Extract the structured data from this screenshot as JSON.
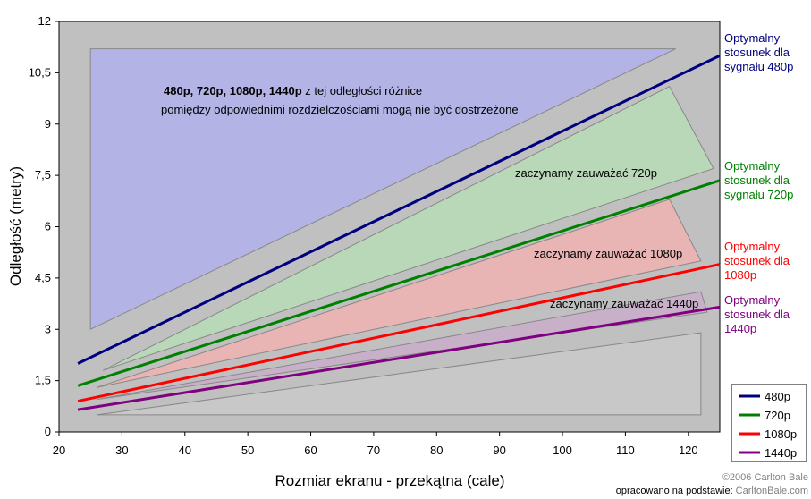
{
  "chart_data": {
    "type": "line",
    "title": "",
    "xlabel": "Rozmiar ekranu - przekątna (cale)",
    "ylabel": "Odległość (metry)",
    "xlim": [
      20,
      125
    ],
    "ylim": [
      0,
      12
    ],
    "x_ticks": [
      "20",
      "30",
      "40",
      "50",
      "60",
      "70",
      "80",
      "90",
      "100",
      "110",
      "120"
    ],
    "y_ticks": [
      "0",
      "1,5",
      "3",
      "4,5",
      "6",
      "7,5",
      "9",
      "10,5",
      "12"
    ],
    "grid": false,
    "legend_position": "bottom-right",
    "series": [
      {
        "name": "480p",
        "color": "#00007f",
        "x": [
          23,
          125
        ],
        "y": [
          2.0,
          11.0
        ]
      },
      {
        "name": "720p",
        "color": "#008000",
        "x": [
          23,
          125
        ],
        "y": [
          1.35,
          7.35
        ]
      },
      {
        "name": "1080p",
        "color": "#ff0000",
        "x": [
          23,
          125
        ],
        "y": [
          0.9,
          4.9
        ]
      },
      {
        "name": "1440p",
        "color": "#800080",
        "x": [
          23,
          125
        ],
        "y": [
          0.65,
          3.65
        ]
      }
    ],
    "regions": [
      {
        "fill": "#b3b3e6",
        "points": [
          [
            25,
            11.2
          ],
          [
            118,
            11.2
          ],
          [
            25,
            3.0
          ]
        ]
      },
      {
        "fill": "#b8d8b8",
        "points": [
          [
            27,
            1.8
          ],
          [
            117,
            10.1
          ],
          [
            124,
            7.7
          ]
        ]
      },
      {
        "fill": "#e8b4b4",
        "points": [
          [
            26,
            1.3
          ],
          [
            117,
            6.8
          ],
          [
            122,
            5.0
          ]
        ]
      },
      {
        "fill": "#c9b0c9",
        "points": [
          [
            26,
            0.95
          ],
          [
            122,
            4.1
          ],
          [
            123,
            3.5
          ]
        ]
      },
      {
        "fill": "#c8c8c8",
        "points": [
          [
            26,
            0.5
          ],
          [
            122,
            2.9
          ],
          [
            122,
            0.5
          ]
        ]
      }
    ],
    "annotations": [
      {
        "bold_text": "480p, 720p, 1080p, 1440p",
        "text": " z tej odległości różnice"
      },
      {
        "text": "pomiędzy odpowiednimi rozdzielczościami mogą nie być dostrzeżone"
      },
      {
        "text": "zaczynamy zauważać 720p"
      },
      {
        "text": "zaczynamy zauważać 1080p"
      },
      {
        "text": "zaczynamy zauważać 1440p"
      }
    ],
    "side_labels": [
      {
        "lines": [
          "Optymalny",
          "stosunek dla",
          "sygnału 480p"
        ],
        "color": "#00007f"
      },
      {
        "lines": [
          "Optymalny",
          "stosunek dla",
          "sygnału 720p"
        ],
        "color": "#008000"
      },
      {
        "lines": [
          "Optymalny",
          "stosunek dla",
          "1080p"
        ],
        "color": "#ff0000"
      },
      {
        "lines": [
          "Optymalny",
          "stosunek dla",
          "1440p"
        ],
        "color": "#800080"
      }
    ],
    "credits": {
      "copyright": "©2006 Carlton Bale",
      "source_label": "opracowano na podstawie:",
      "source_site": "CarltonBale.com"
    }
  }
}
